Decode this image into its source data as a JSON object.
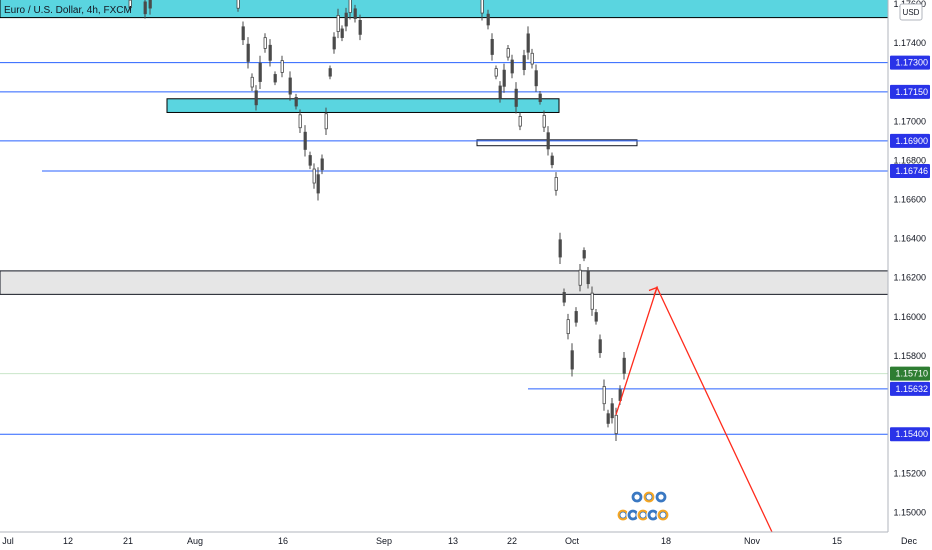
{
  "header": {
    "symbol_title": "Euro / U.S. Dollar, 4h, FXCM",
    "currency": "USD"
  },
  "colors": {
    "level_line": "#2962ff",
    "supply_zone": "#5ad5e0",
    "gray_zone": "#e6e6e6",
    "projection": "#ff2b1c",
    "candle": "#4a4a4a",
    "tag_blue": "#2933e8",
    "tag_green": "#2e7d32",
    "axis_bg": "#ffffff"
  },
  "chart_data": {
    "type": "candlestick",
    "ylim": [
      1.149,
      1.1762
    ],
    "x_ticks": [
      "Jul",
      "12",
      "21",
      "Aug",
      "16",
      "Sep",
      "13",
      "22",
      "Oct",
      "18",
      "Nov",
      "15",
      "Dec"
    ],
    "y_ticks": [
      "1.17600",
      "1.17400",
      "1.17300",
      "1.17150",
      "1.17000",
      "1.16900",
      "1.16800",
      "1.16746",
      "1.16600",
      "1.16400",
      "1.16200",
      "1.16000",
      "1.15800",
      "1.15710",
      "1.15632",
      "1.15400",
      "1.15200",
      "1.15000"
    ],
    "levels": [
      {
        "name": "level-1.17300",
        "price": 1.173,
        "label": "1.17300",
        "from_start": true
      },
      {
        "name": "level-1.17150",
        "price": 1.1715,
        "label": "1.17150",
        "from_start": true
      },
      {
        "name": "level-1.16900",
        "price": 1.169,
        "label": "1.16900",
        "from_start": true
      },
      {
        "name": "level-1.16746",
        "price": 1.16746,
        "label": "1.16746",
        "from_start": false
      },
      {
        "name": "level-1.15632",
        "price": 1.15632,
        "label": "1.15632",
        "from_start": false
      },
      {
        "name": "level-1.15400",
        "price": 1.154,
        "label": "1.15400",
        "from_start": true
      }
    ],
    "last_price": {
      "price": 1.1571,
      "label": "1.15710"
    },
    "zones": [
      {
        "name": "supply-zone-top",
        "y_top": 1.177,
        "y_bottom": 1.1753
      },
      {
        "name": "supply-zone-mid",
        "y_top": 1.17115,
        "y_bottom": 1.17045
      },
      {
        "name": "resistance-box",
        "y_top": 1.16905,
        "y_bottom": 1.16875
      },
      {
        "name": "gray-zone",
        "y_top": 1.16235,
        "y_bottom": 1.16115
      }
    ],
    "projection": [
      {
        "t": 0.0,
        "price": 1.155
      },
      {
        "t": 0.3,
        "price": 1.1615
      },
      {
        "t": 1.0,
        "price": 1.149
      }
    ]
  }
}
